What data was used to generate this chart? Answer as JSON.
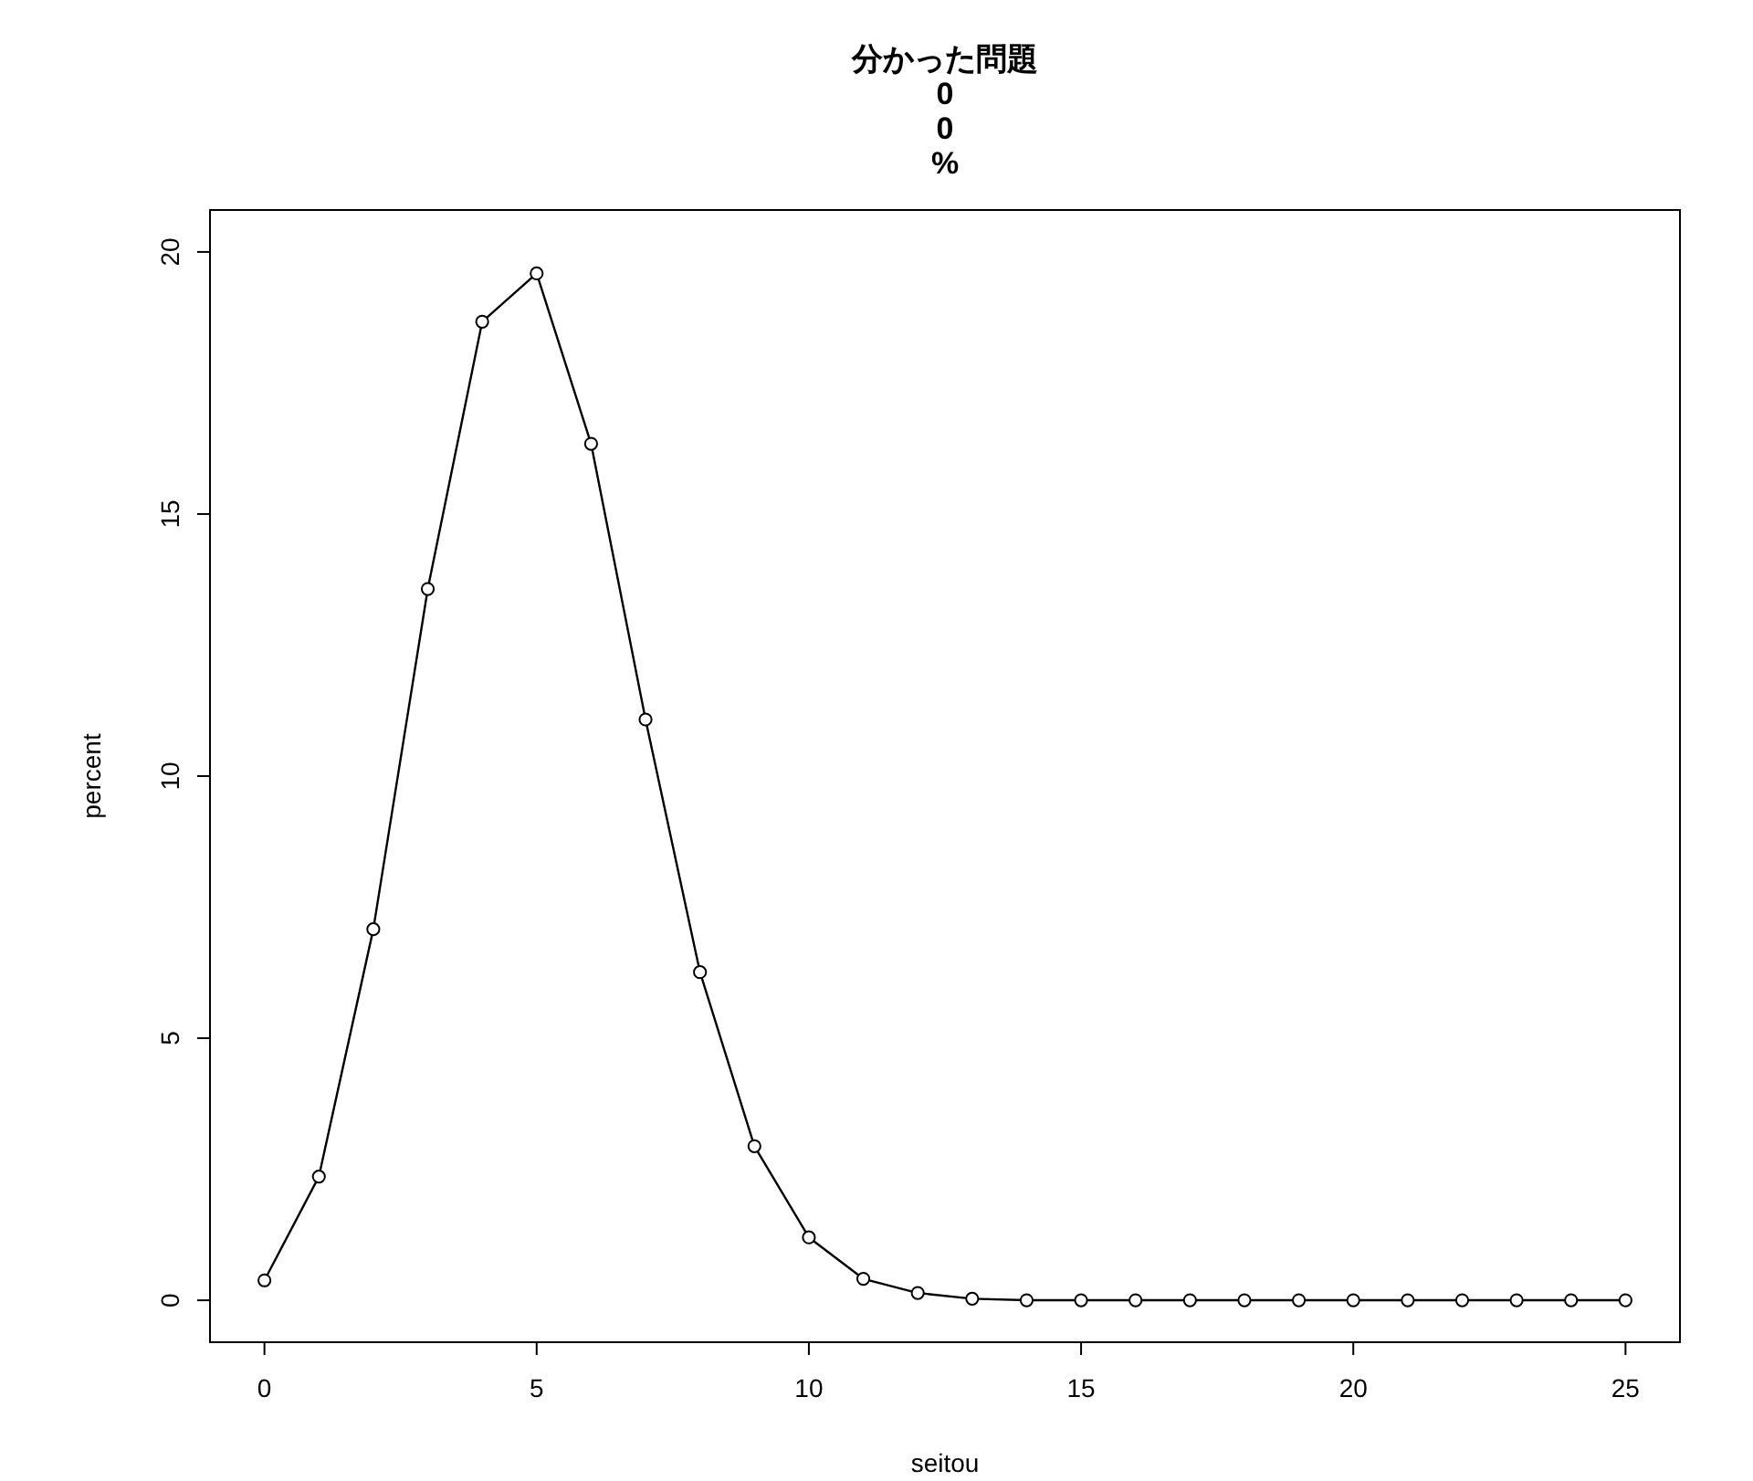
{
  "chart_data": {
    "type": "line",
    "title": "分かった問題\n0\n0\n%",
    "xlabel": "seitou",
    "ylabel": "percent",
    "x": [
      0,
      1,
      2,
      3,
      4,
      5,
      6,
      7,
      8,
      9,
      10,
      11,
      12,
      13,
      14,
      15,
      16,
      17,
      18,
      19,
      20,
      21,
      22,
      23,
      24,
      25
    ],
    "series": [
      {
        "color": "#000000",
        "values": [
          0.38,
          2.36,
          7.08,
          13.57,
          18.67,
          19.59,
          16.34,
          11.08,
          6.26,
          2.94,
          1.2,
          0.41,
          0.14,
          0.03,
          0,
          0,
          0,
          0,
          0,
          0,
          0,
          0,
          0,
          0,
          0,
          0
        ]
      }
    ],
    "xlim": [
      -1,
      26
    ],
    "ylim": [
      -0.8,
      20.8
    ],
    "xticks": [
      0,
      5,
      10,
      15,
      20,
      25
    ],
    "yticks": [
      0,
      5,
      10,
      15,
      20
    ],
    "marker": "circle",
    "line_style": "solid"
  }
}
